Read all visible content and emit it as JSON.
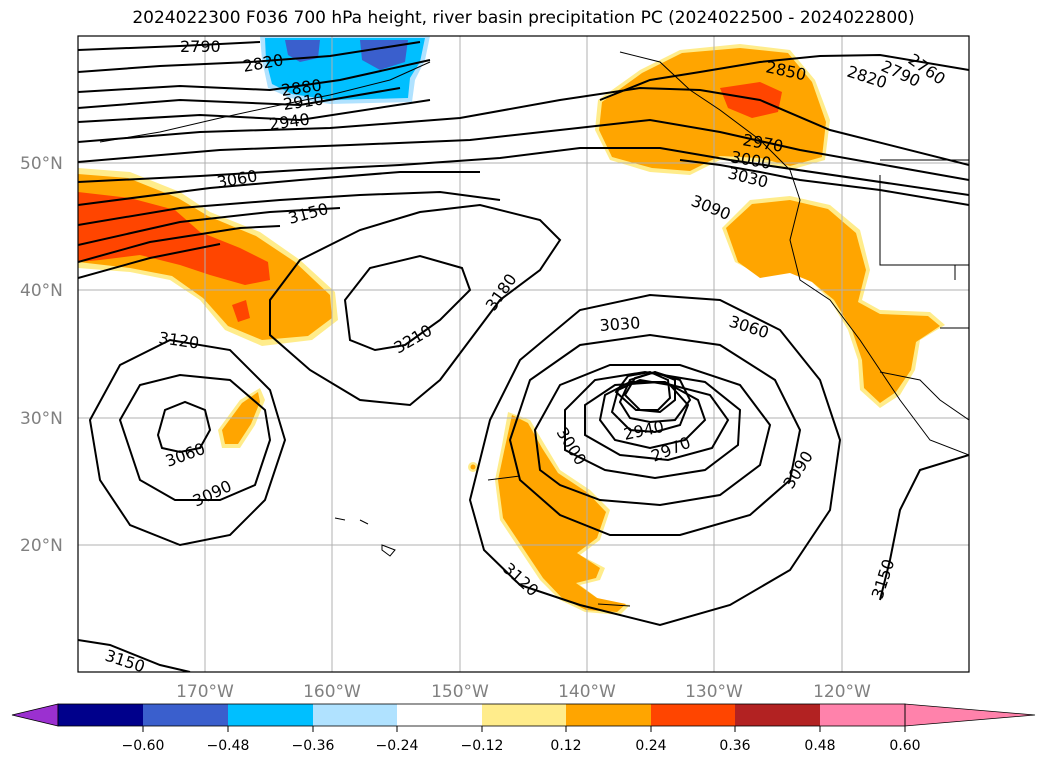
{
  "title": "2024022300 F036 700 hPa height, river basin precipitation PC (2024022500 - 2024022800)",
  "latitude_labels": [
    "50°N",
    "40°N",
    "30°N",
    "20°N"
  ],
  "longitude_labels": [
    "170°W",
    "160°W",
    "150°W",
    "140°W",
    "130°W",
    "120°W"
  ],
  "contour_labels": [
    {
      "text": "2790"
    },
    {
      "text": "2820"
    },
    {
      "text": "2880"
    },
    {
      "text": "2910"
    },
    {
      "text": "2940"
    },
    {
      "text": "3060"
    },
    {
      "text": "3150"
    },
    {
      "text": "3210"
    },
    {
      "text": "3180"
    },
    {
      "text": "3120"
    },
    {
      "text": "3060"
    },
    {
      "text": "3090"
    },
    {
      "text": "3030"
    },
    {
      "text": "3060"
    },
    {
      "text": "3000"
    },
    {
      "text": "2940"
    },
    {
      "text": "2970"
    },
    {
      "text": "3090"
    },
    {
      "text": "3120"
    },
    {
      "text": "3150"
    },
    {
      "text": "3150"
    },
    {
      "text": "2850"
    },
    {
      "text": "2820"
    },
    {
      "text": "2790"
    },
    {
      "text": "2760"
    },
    {
      "text": "2970"
    },
    {
      "text": "3000"
    },
    {
      "text": "3030"
    },
    {
      "text": "3090"
    }
  ],
  "colorbar": {
    "colors": [
      "#9b30d0",
      "#00008b",
      "#3a5fcd",
      "#00bfff",
      "#b0e2ff",
      "#ffffff",
      "#ffec8b",
      "#ffa500",
      "#ff4500",
      "#b22222",
      "#ff82ab"
    ],
    "tick_labels": [
      "−0.60",
      "−0.48",
      "−0.36",
      "−0.24",
      "−0.12",
      "0.12",
      "0.24",
      "0.36",
      "0.48",
      "0.60"
    ]
  }
}
